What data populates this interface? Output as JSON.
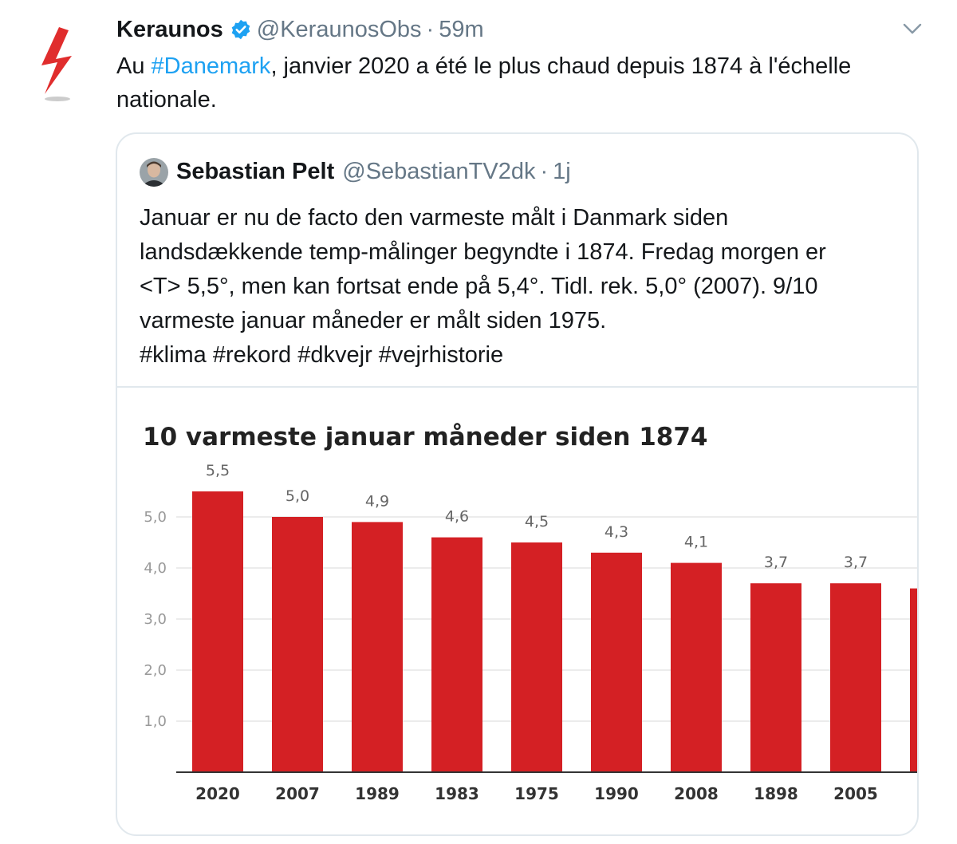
{
  "tweet": {
    "author_name": "Keraunos",
    "author_handle": "@KeraunosObs",
    "separator": "·",
    "time": "59m",
    "text_before": "Au ",
    "hashtag": "#Danemark",
    "text_after": ", janvier 2020 a été le plus chaud depuis 1874 à l'échelle nationale."
  },
  "icons": {
    "avatar": "lightning-bolt-icon",
    "verified": "verified-badge-icon",
    "menu": "chevron-down-icon"
  },
  "quoted_tweet": {
    "author_name": "Sebastian Pelt",
    "author_handle": "@SebastianTV2dk",
    "separator": "·",
    "time": "1j",
    "text_lines": [
      "Januar er nu de facto den varmeste målt i Danmark siden",
      "landsdækkende temp-målinger begyndte i 1874. Fredag morgen er",
      "<T> 5,5°, men kan fortsat ende på 5,4°. Tidl. rek. 5,0° (2007). 9/10",
      "varmeste januar måneder er målt siden 1975.",
      "#klima #rekord #dkvejr #vejrhistorie"
    ]
  },
  "colors": {
    "accent": "#1da1f2",
    "bar": "#d42024",
    "bolt": "#e02d2d"
  },
  "chart_data": {
    "type": "bar",
    "title": "10 varmeste januar måneder siden 1874",
    "categories": [
      "2020",
      "2007",
      "1989",
      "1983",
      "1975",
      "1990",
      "2008",
      "1898",
      "2005",
      ""
    ],
    "values": [
      5.5,
      5.0,
      4.9,
      4.6,
      4.5,
      4.3,
      4.1,
      3.7,
      3.7,
      3.6
    ],
    "value_labels": [
      "5,5",
      "5,0",
      "4,9",
      "4,6",
      "4,5",
      "4,3",
      "4,1",
      "3,7",
      "3,7",
      ""
    ],
    "y_ticks": [
      1.0,
      2.0,
      3.0,
      4.0,
      5.0
    ],
    "y_tick_labels": [
      "1,0",
      "2,0",
      "3,0",
      "4,0",
      "5,0"
    ],
    "ylim": [
      0,
      5.5
    ],
    "grid": true,
    "xlabel": "",
    "ylabel": ""
  }
}
